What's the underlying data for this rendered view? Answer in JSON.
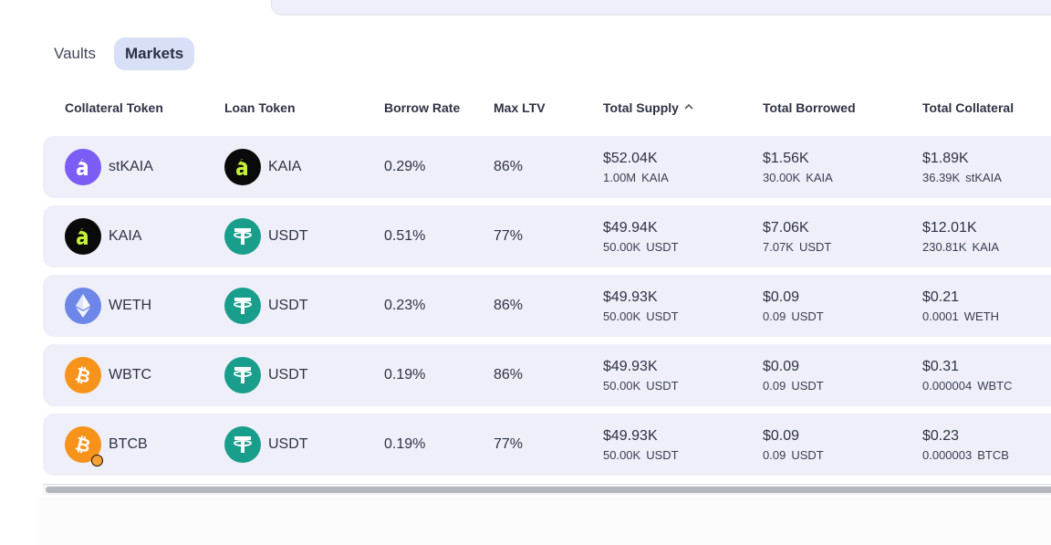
{
  "tabs": [
    {
      "label": "Vaults",
      "active": false
    },
    {
      "label": "Markets",
      "active": true
    }
  ],
  "columns": {
    "collateral": "Collateral Token",
    "loan": "Loan Token",
    "borrow_rate": "Borrow Rate",
    "max_ltv": "Max LTV",
    "total_supply": "Total Supply",
    "total_borrowed": "Total Borrowed",
    "total_collateral": "Total Collateral"
  },
  "sort_icon": "chevron-up-icon",
  "colors": {
    "row_bg": "#eeeff9",
    "active_tab_bg": "#d7e0f7",
    "kaia_icon_bg": "#0a0a0a",
    "kaia_icon_fg": "#c5f036",
    "stkaia_icon_bg": "#7b5cf5",
    "usdt_icon_bg": "#1a9e8c",
    "weth_icon_bg": "#6d86e8",
    "btc_icon_bg": "#f7931a"
  },
  "rows": [
    {
      "collateral": {
        "symbol": "stKAIA",
        "icon": "stkaia-icon"
      },
      "loan": {
        "symbol": "KAIA",
        "icon": "kaia-icon"
      },
      "borrow_rate": "0.29%",
      "max_ltv": "86%",
      "supply": {
        "usd": "$52.04K",
        "amount": "1.00M",
        "unit": "KAIA"
      },
      "borrowed": {
        "usd": "$1.56K",
        "amount": "30.00K",
        "unit": "KAIA"
      },
      "collateral_total": {
        "usd": "$1.89K",
        "amount": "36.39K",
        "unit": "stKAIA"
      }
    },
    {
      "collateral": {
        "symbol": "KAIA",
        "icon": "kaia-icon"
      },
      "loan": {
        "symbol": "USDT",
        "icon": "usdt-icon"
      },
      "borrow_rate": "0.51%",
      "max_ltv": "77%",
      "supply": {
        "usd": "$49.94K",
        "amount": "50.00K",
        "unit": "USDT"
      },
      "borrowed": {
        "usd": "$7.06K",
        "amount": "7.07K",
        "unit": "USDT"
      },
      "collateral_total": {
        "usd": "$12.01K",
        "amount": "230.81K",
        "unit": "KAIA"
      }
    },
    {
      "collateral": {
        "symbol": "WETH",
        "icon": "ethereum-icon"
      },
      "loan": {
        "symbol": "USDT",
        "icon": "usdt-icon"
      },
      "borrow_rate": "0.23%",
      "max_ltv": "86%",
      "supply": {
        "usd": "$49.93K",
        "amount": "50.00K",
        "unit": "USDT"
      },
      "borrowed": {
        "usd": "$0.09",
        "amount": "0.09",
        "unit": "USDT"
      },
      "collateral_total": {
        "usd": "$0.21",
        "amount": "0.0001",
        "unit": "WETH"
      }
    },
    {
      "collateral": {
        "symbol": "WBTC",
        "icon": "bitcoin-icon"
      },
      "loan": {
        "symbol": "USDT",
        "icon": "usdt-icon"
      },
      "borrow_rate": "0.19%",
      "max_ltv": "86%",
      "supply": {
        "usd": "$49.93K",
        "amount": "50.00K",
        "unit": "USDT"
      },
      "borrowed": {
        "usd": "$0.09",
        "amount": "0.09",
        "unit": "USDT"
      },
      "collateral_total": {
        "usd": "$0.31",
        "amount": "0.000004",
        "unit": "WBTC"
      }
    },
    {
      "collateral": {
        "symbol": "BTCB",
        "icon": "bitcoin-icon"
      },
      "loan": {
        "symbol": "USDT",
        "icon": "usdt-icon"
      },
      "borrow_rate": "0.19%",
      "max_ltv": "77%",
      "supply": {
        "usd": "$49.93K",
        "amount": "50.00K",
        "unit": "USDT"
      },
      "borrowed": {
        "usd": "$0.09",
        "amount": "0.09",
        "unit": "USDT"
      },
      "collateral_total": {
        "usd": "$0.23",
        "amount": "0.000003",
        "unit": "BTCB"
      }
    }
  ]
}
